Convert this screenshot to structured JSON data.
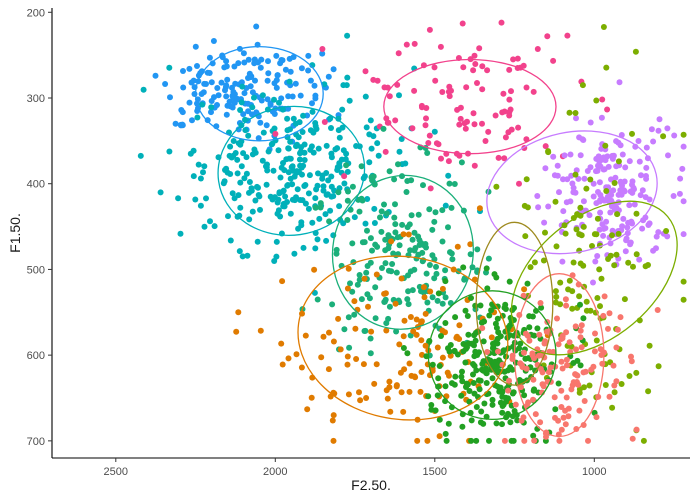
{
  "chart_data": {
    "type": "scatter",
    "title": "",
    "xlabel": "F2.50.",
    "ylabel": "F1.50.",
    "xlim": [
      2700,
      700
    ],
    "ylim": [
      720,
      195
    ],
    "x_reversed": true,
    "y_reversed": true,
    "x_ticks": [
      2500,
      2000,
      1500,
      1000
    ],
    "y_ticks": [
      200,
      300,
      400,
      500,
      600,
      700
    ],
    "grid": false,
    "legend": "none",
    "series": [
      {
        "color": "#2196F3",
        "center": [
          2100,
          290
        ],
        "spread": [
          130,
          28
        ],
        "n": 170,
        "ellipse": {
          "cx": 2050,
          "cy": 295,
          "rx": 200,
          "ry": 55,
          "angle": 0
        }
      },
      {
        "color": "#00B0B9",
        "center": [
          1950,
          380
        ],
        "spread": [
          170,
          45
        ],
        "n": 300,
        "ellipse": {
          "cx": 1950,
          "cy": 385,
          "rx": 230,
          "ry": 75,
          "angle": -8
        }
      },
      {
        "color": "#F2428C",
        "center": [
          1400,
          310
        ],
        "spread": [
          190,
          40
        ],
        "n": 110,
        "ellipse": {
          "cx": 1390,
          "cy": 310,
          "rx": 270,
          "ry": 55,
          "angle": 0
        }
      },
      {
        "color": "#C77CFF",
        "center": [
          940,
          410
        ],
        "spread": [
          100,
          45
        ],
        "n": 200,
        "ellipse": {
          "cx": 1070,
          "cy": 410,
          "rx": 270,
          "ry": 70,
          "angle": -12
        }
      },
      {
        "color": "#1BAF7A",
        "center": [
          1600,
          480
        ],
        "spread": [
          120,
          55
        ],
        "n": 200,
        "ellipse": {
          "cx": 1600,
          "cy": 480,
          "rx": 220,
          "ry": 90,
          "angle": 10
        }
      },
      {
        "color": "#7CAE00",
        "center": [
          1020,
          500
        ],
        "spread": [
          110,
          90
        ],
        "n": 120,
        "ellipse": {
          "cx": 1000,
          "cy": 510,
          "rx": 300,
          "ry": 70,
          "angle": -40
        }
      },
      {
        "color": "#E07B00",
        "center": [
          1600,
          590
        ],
        "spread": [
          190,
          55
        ],
        "n": 140,
        "ellipse": {
          "cx": 1600,
          "cy": 580,
          "rx": 330,
          "ry": 95,
          "angle": 8
        }
      },
      {
        "color": "#22A022",
        "center": [
          1300,
          610
        ],
        "spread": [
          100,
          45
        ],
        "n": 280,
        "ellipse": {
          "cx": 1320,
          "cy": 600,
          "rx": 200,
          "ry": 75,
          "angle": 12
        }
      },
      {
        "color": "#F8766D",
        "center": [
          1100,
          615
        ],
        "spread": [
          90,
          45
        ],
        "n": 140,
        "ellipse": {
          "cx": 1110,
          "cy": 600,
          "rx": 140,
          "ry": 95,
          "angle": 0
        }
      },
      {
        "color": "#9E8A1F",
        "center": [
          1240,
          545
        ],
        "spread": [
          60,
          40
        ],
        "n": 0,
        "ellipse": {
          "cx": 1250,
          "cy": 540,
          "rx": 120,
          "ry": 95,
          "angle": 0
        }
      }
    ]
  }
}
